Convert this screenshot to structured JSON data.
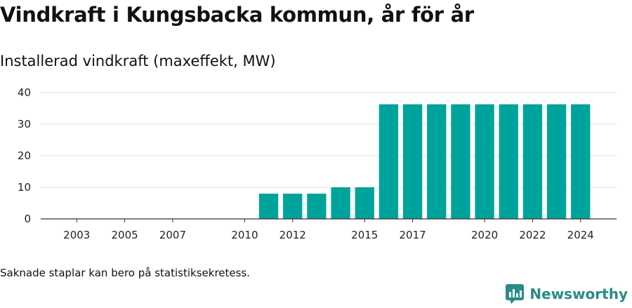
{
  "title": "Vindkraft i Kungsbacka kommun, år för år",
  "subtitle": "Installerad vindkraft (maxeffekt, MW)",
  "footnote": "Saknade staplar kan bero på statistiksekretess.",
  "brand": {
    "name": "Newsworthy",
    "icon": "newsworthy-logo-icon",
    "color": "#2a8c85"
  },
  "chart_data": {
    "type": "bar",
    "x": [
      2003,
      2004,
      2005,
      2006,
      2007,
      2008,
      2009,
      2010,
      2011,
      2012,
      2013,
      2014,
      2015,
      2016,
      2017,
      2018,
      2019,
      2020,
      2021,
      2022,
      2023,
      2024
    ],
    "values": [
      0,
      0,
      0,
      0,
      0,
      0,
      0,
      0,
      8,
      8,
      8,
      10,
      10,
      36.3,
      36.3,
      36.3,
      36.3,
      36.3,
      36.3,
      36.3,
      36.3,
      36.3
    ],
    "xticks": [
      2003,
      2005,
      2007,
      2010,
      2012,
      2015,
      2017,
      2020,
      2022,
      2024
    ],
    "yticks": [
      0,
      10,
      20,
      30,
      40
    ],
    "ylim": [
      0,
      40
    ],
    "xlim": [
      2001.5,
      2025.5
    ],
    "bar_color": "#00a39b",
    "grid": true,
    "xlabel": "",
    "ylabel": ""
  }
}
